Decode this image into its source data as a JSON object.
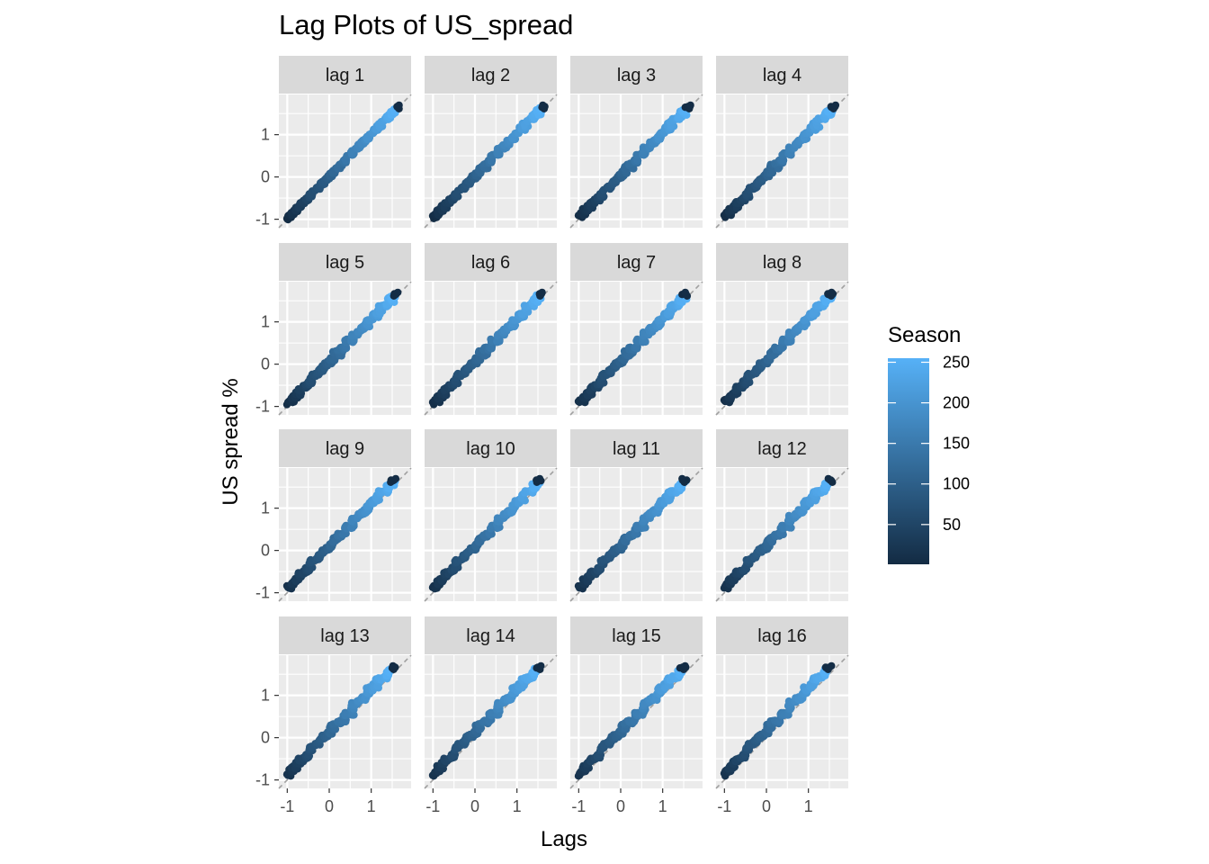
{
  "chart_data": {
    "type": "scatter",
    "title": "Lag Plots of US_spread",
    "xlabel": "Lags",
    "ylabel": "US spread %",
    "panels": [
      "lag 1",
      "lag 2",
      "lag 3",
      "lag 4",
      "lag 5",
      "lag 6",
      "lag 7",
      "lag 8",
      "lag 9",
      "lag 10",
      "lag 11",
      "lag 12",
      "lag 13",
      "lag 14",
      "lag 15",
      "lag 16"
    ],
    "xlim": [
      -1.2,
      1.95
    ],
    "ylim": [
      -1.2,
      1.95
    ],
    "x_ticks": [
      -1,
      0,
      1
    ],
    "x_tick_labels": [
      "-1",
      "0",
      "1"
    ],
    "y_ticks": [
      -1,
      0,
      1
    ],
    "y_tick_labels": [
      "-1",
      "0",
      "1"
    ],
    "grid": true,
    "diagonal_reference_line": true,
    "legend": {
      "title": "Season",
      "type": "colorbar",
      "placement": "right",
      "range": [
        1,
        255
      ],
      "ticks": [
        50,
        100,
        150,
        200,
        250
      ],
      "tick_labels": [
        "50",
        "100",
        "150",
        "200",
        "250"
      ],
      "color_low": "#132b43",
      "color_high": "#56b1f7"
    },
    "series_note": "each panel plots US_spread (y) against its lagged value (x), coloured by Season"
  }
}
